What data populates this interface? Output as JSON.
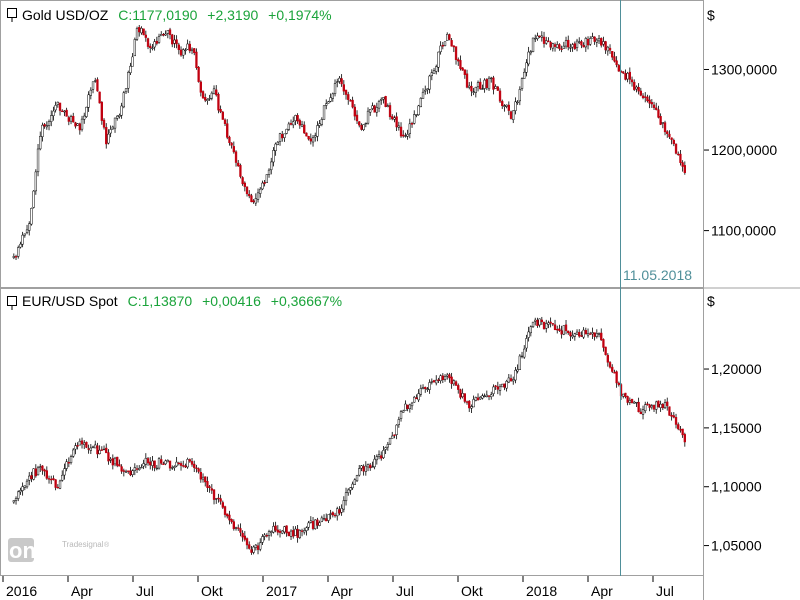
{
  "colors": {
    "background": "#ffffff",
    "frame": "#a0a0a0",
    "candle_up": "#000000",
    "candle_down": "#c0000f",
    "wick": "#000000",
    "header_value": "#1aa33a",
    "cursor_line": "#4f8f99",
    "cursor_label": "#4f8f99"
  },
  "watermark": {
    "brand_small": "Tradesignal",
    "brand_large": "onLine",
    "trademark": "®"
  },
  "cursor": {
    "date_label": "11.05.2018"
  },
  "x_axis": {
    "tick_labels": [
      "2016",
      "Apr",
      "Jul",
      "Okt",
      "2017",
      "Apr",
      "Jul",
      "Okt",
      "2018",
      "Apr",
      "Jul"
    ]
  },
  "chart_data": [
    {
      "type": "candlestick",
      "instrument": "Gold USD/OZ",
      "header": {
        "close_label": "C:1177,0190",
        "change_abs": "+2,3190",
        "change_pct": "+0,1974%"
      },
      "currency_symbol": "$",
      "y_ticks": [
        1100,
        1200,
        1300
      ],
      "y_tick_labels": [
        "1100,0000",
        "1200,0000",
        "1300,0000"
      ],
      "ylim": [
        1030,
        1385
      ],
      "x_range": [
        "2016-01",
        "2018-08"
      ],
      "path_points": [
        {
          "x": "2016-01",
          "y": 1065
        },
        {
          "x": "2016-02",
          "y": 1115
        },
        {
          "x": "2016-02",
          "y": 1225
        },
        {
          "x": "2016-03",
          "y": 1255
        },
        {
          "x": "2016-04",
          "y": 1225
        },
        {
          "x": "2016-05",
          "y": 1290
        },
        {
          "x": "2016-05",
          "y": 1210
        },
        {
          "x": "2016-06",
          "y": 1255
        },
        {
          "x": "2016-07",
          "y": 1355
        },
        {
          "x": "2016-07",
          "y": 1325
        },
        {
          "x": "2016-08",
          "y": 1350
        },
        {
          "x": "2016-09",
          "y": 1320
        },
        {
          "x": "2016-09",
          "y": 1330
        },
        {
          "x": "2016-10",
          "y": 1260
        },
        {
          "x": "2016-10",
          "y": 1270
        },
        {
          "x": "2016-11",
          "y": 1230
        },
        {
          "x": "2016-11",
          "y": 1185
        },
        {
          "x": "2016-12",
          "y": 1130
        },
        {
          "x": "2017-01",
          "y": 1175
        },
        {
          "x": "2017-01",
          "y": 1215
        },
        {
          "x": "2017-02",
          "y": 1240
        },
        {
          "x": "2017-03",
          "y": 1205
        },
        {
          "x": "2017-03",
          "y": 1245
        },
        {
          "x": "2017-04",
          "y": 1290
        },
        {
          "x": "2017-05",
          "y": 1230
        },
        {
          "x": "2017-06",
          "y": 1265
        },
        {
          "x": "2017-07",
          "y": 1215
        },
        {
          "x": "2017-08",
          "y": 1275
        },
        {
          "x": "2017-09",
          "y": 1345
        },
        {
          "x": "2017-10",
          "y": 1275
        },
        {
          "x": "2017-11",
          "y": 1285
        },
        {
          "x": "2017-12",
          "y": 1240
        },
        {
          "x": "2018-01",
          "y": 1340
        },
        {
          "x": "2018-02",
          "y": 1330
        },
        {
          "x": "2018-03",
          "y": 1330
        },
        {
          "x": "2018-04",
          "y": 1340
        },
        {
          "x": "2018-05",
          "y": 1300
        },
        {
          "x": "2018-06",
          "y": 1270
        },
        {
          "x": "2018-07",
          "y": 1230
        },
        {
          "x": "2018-08",
          "y": 1175
        }
      ]
    },
    {
      "type": "candlestick",
      "instrument": "EUR/USD Spot",
      "header": {
        "close_label": "C:1,13870",
        "change_abs": "+0,00416",
        "change_pct": "+0,36667%"
      },
      "currency_symbol": "$",
      "y_ticks": [
        1.05,
        1.1,
        1.15,
        1.2
      ],
      "y_tick_labels": [
        "1,05000",
        "1,10000",
        "1,15000",
        "1,20000"
      ],
      "ylim": [
        1.025,
        1.268
      ],
      "x_range": [
        "2016-01",
        "2018-08"
      ],
      "path_points": [
        {
          "x": "2016-01",
          "y": 1.085
        },
        {
          "x": "2016-02",
          "y": 1.11
        },
        {
          "x": "2016-02",
          "y": 1.115
        },
        {
          "x": "2016-03",
          "y": 1.1
        },
        {
          "x": "2016-04",
          "y": 1.14
        },
        {
          "x": "2016-05",
          "y": 1.13
        },
        {
          "x": "2016-06",
          "y": 1.12
        },
        {
          "x": "2016-06",
          "y": 1.11
        },
        {
          "x": "2016-07",
          "y": 1.12
        },
        {
          "x": "2016-08",
          "y": 1.12
        },
        {
          "x": "2016-09",
          "y": 1.12
        },
        {
          "x": "2016-10",
          "y": 1.1
        },
        {
          "x": "2016-11",
          "y": 1.07
        },
        {
          "x": "2016-12",
          "y": 1.045
        },
        {
          "x": "2017-01",
          "y": 1.065
        },
        {
          "x": "2017-02",
          "y": 1.06
        },
        {
          "x": "2017-03",
          "y": 1.07
        },
        {
          "x": "2017-04",
          "y": 1.08
        },
        {
          "x": "2017-05",
          "y": 1.115
        },
        {
          "x": "2017-06",
          "y": 1.125
        },
        {
          "x": "2017-07",
          "y": 1.165
        },
        {
          "x": "2017-08",
          "y": 1.185
        },
        {
          "x": "2017-09",
          "y": 1.195
        },
        {
          "x": "2017-10",
          "y": 1.17
        },
        {
          "x": "2017-11",
          "y": 1.18
        },
        {
          "x": "2017-12",
          "y": 1.19
        },
        {
          "x": "2018-01",
          "y": 1.24
        },
        {
          "x": "2018-02",
          "y": 1.235
        },
        {
          "x": "2018-03",
          "y": 1.23
        },
        {
          "x": "2018-04",
          "y": 1.23
        },
        {
          "x": "2018-05",
          "y": 1.18
        },
        {
          "x": "2018-06",
          "y": 1.165
        },
        {
          "x": "2018-07",
          "y": 1.17
        },
        {
          "x": "2018-08",
          "y": 1.139
        }
      ]
    }
  ]
}
